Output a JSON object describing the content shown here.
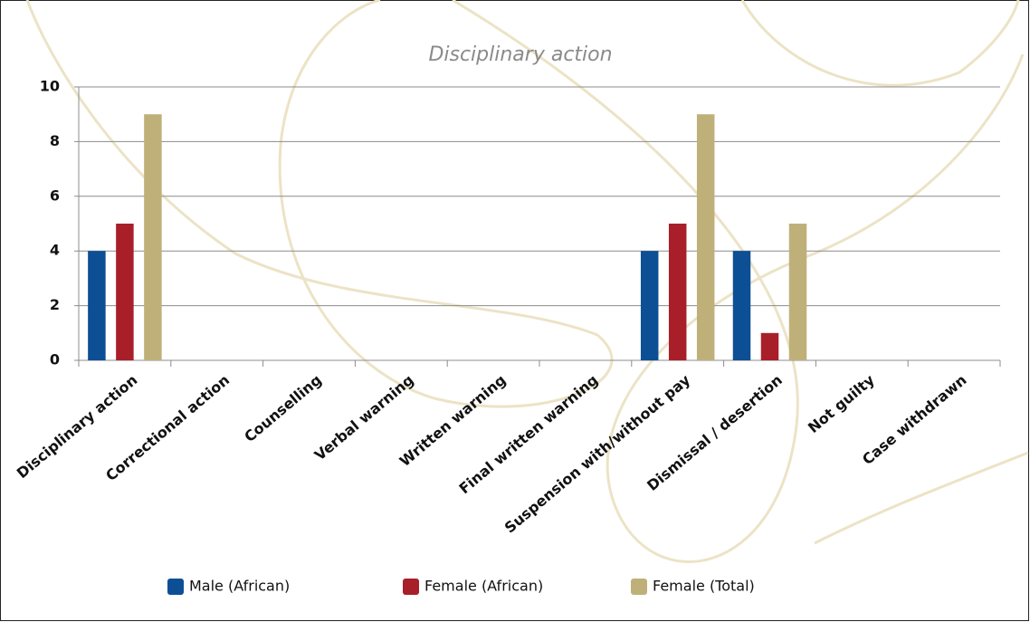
{
  "chart_data": {
    "type": "bar",
    "title": "Disciplinary action",
    "categories": [
      "Disciplinary action",
      "Correctional action",
      "Counselling",
      "Verbal warning",
      "Written warning",
      "Final written warning",
      "Suspension with/without pay",
      "Dismissal / desertion",
      "Not guilty",
      "Case withdrawn"
    ],
    "series": [
      {
        "name": "Male (African)",
        "color": "#0d4f94",
        "values": [
          4,
          0,
          0,
          0,
          0,
          0,
          4,
          4,
          0,
          0
        ]
      },
      {
        "name": "Female (African)",
        "color": "#a81f2a",
        "values": [
          5,
          0,
          0,
          0,
          0,
          0,
          5,
          1,
          0,
          0
        ]
      },
      {
        "name": "Female (Total)",
        "color": "#bfb07a",
        "values": [
          9,
          0,
          0,
          0,
          0,
          0,
          9,
          5,
          0,
          0
        ]
      }
    ],
    "ylim": [
      0,
      10
    ],
    "yticks": [
      0,
      2,
      4,
      6,
      8,
      10
    ],
    "grid": true,
    "legend": "bottom"
  }
}
